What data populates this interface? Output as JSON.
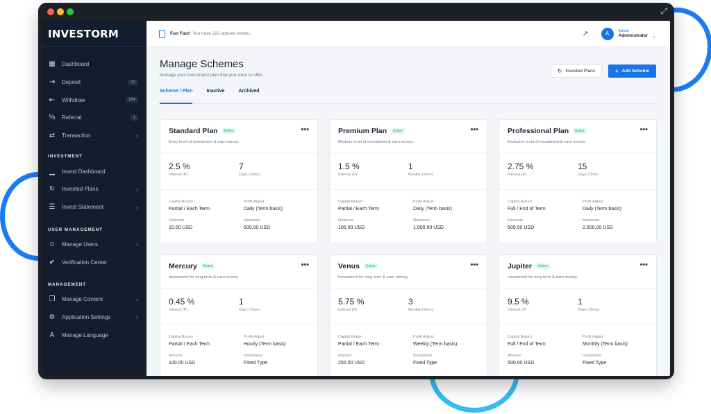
{
  "app": {
    "logo": "INVESTORM"
  },
  "sidebar": {
    "items": [
      {
        "label": "Dashboard",
        "icon": "grid-icon",
        "badge": "",
        "chevron": false
      },
      {
        "label": "Deposit",
        "icon": "deposit-icon",
        "badge": "21",
        "chevron": false
      },
      {
        "label": "Withdraw",
        "icon": "withdraw-icon",
        "badge": "164",
        "chevron": false
      },
      {
        "label": "Referral",
        "icon": "percent-icon",
        "badge": "1",
        "chevron": false
      },
      {
        "label": "Transaction",
        "icon": "transaction-icon",
        "badge": "",
        "chevron": true
      }
    ],
    "sections": [
      {
        "title": "INVESTMENT",
        "items": [
          {
            "label": "Invest Dashboard",
            "icon": "chart-icon",
            "chevron": false
          },
          {
            "label": "Invested Plans",
            "icon": "refresh-money-icon",
            "chevron": true
          },
          {
            "label": "Invest Statement",
            "icon": "statement-icon",
            "chevron": true
          }
        ]
      },
      {
        "title": "USER MANAGEMENT",
        "items": [
          {
            "label": "Manage Users",
            "icon": "users-icon",
            "chevron": true
          },
          {
            "label": "Verification Center",
            "icon": "check-circle-icon",
            "chevron": false
          }
        ]
      },
      {
        "title": "MANAGEMENT",
        "items": [
          {
            "label": "Manage Content",
            "icon": "content-icon",
            "chevron": true
          },
          {
            "label": "Application Settings",
            "icon": "gear-icon",
            "chevron": true
          },
          {
            "label": "Manage Language",
            "icon": "language-icon",
            "chevron": false
          }
        ]
      }
    ]
  },
  "topbar": {
    "fact_label": "Fun Fact!",
    "fact_text": "You have 222 actived invest...",
    "user_role": "Admin",
    "user_name": "Administrator",
    "avatar_letter": "A"
  },
  "page": {
    "title": "Manage Schemes",
    "subtitle": "Manage your investment plan that you want to offer.",
    "invested_plans_button": "Invested Plans",
    "add_scheme_button": "Add Scheme",
    "tabs": [
      "Scheme / Plan",
      "Inactive",
      "Archived"
    ]
  },
  "colors": {
    "accent": "#1b73e8",
    "sidebar_bg": "#131d2d",
    "active_green": "#1eb46b"
  },
  "plans": [
    {
      "name": "Standard Plan",
      "status": "Active",
      "desc": "Entry level of investment & earn money.",
      "rate": "2.5 %",
      "rate_label": "Interest (P)",
      "term": "7",
      "term_label": "Days (Term)",
      "d1_label": "Capital Return",
      "d1_value": "Partial / Each Term",
      "d2_label": "Profit Adjust",
      "d2_value": "Daily (Term basis)",
      "d3_label": "Minimum",
      "d3_value": "10.00 USD",
      "d4_label": "Maximum",
      "d4_value": "500.00 USD"
    },
    {
      "name": "Premium Plan",
      "status": "Active",
      "desc": "Medium level of investment & earn money.",
      "rate": "1.5 %",
      "rate_label": "Interest (P)",
      "term": "1",
      "term_label": "Months (Term)",
      "d1_label": "Capital Return",
      "d1_value": "Partial / Each Term",
      "d2_label": "Profit Adjust",
      "d2_value": "Daily (Term basis)",
      "d3_label": "Minimum",
      "d3_value": "100.00 USD",
      "d4_label": "Maximum",
      "d4_value": "1,500.00 USD"
    },
    {
      "name": "Professional Plan",
      "status": "Active",
      "desc": "Exclusive level of investment & earn money.",
      "rate": "2.75 %",
      "rate_label": "Interest (P)",
      "term": "15",
      "term_label": "Days (Term)",
      "d1_label": "Capital Return",
      "d1_value": "Full / End of Term",
      "d2_label": "Profit Adjust",
      "d2_value": "Daily (Term basis)",
      "d3_label": "Minimum",
      "d3_value": "500.00 USD",
      "d4_label": "Maximum",
      "d4_value": "2,500.00 USD"
    },
    {
      "name": "Mercury",
      "status": "Active",
      "desc": "Investment for long term & earn money.",
      "rate": "0.45 %",
      "rate_label": "Interest (P)",
      "term": "1",
      "term_label": "Days (Term)",
      "d1_label": "Capital Return",
      "d1_value": "Partial / Each Term",
      "d2_label": "Profit Adjust",
      "d2_value": "Hourly (Term basis)",
      "d3_label": "Amount",
      "d3_value": "100.00 USD",
      "d4_label": "Investment",
      "d4_value": "Fixed Type"
    },
    {
      "name": "Venus",
      "status": "Active",
      "desc": "Investment for long term & earn money.",
      "rate": "5.75 %",
      "rate_label": "Interest (P)",
      "term": "3",
      "term_label": "Months (Term)",
      "d1_label": "Capital Return",
      "d1_value": "Partial / Each Term",
      "d2_label": "Profit Adjust",
      "d2_value": "Weekly (Term basis)",
      "d3_label": "Amount",
      "d3_value": "250.00 USD",
      "d4_label": "Investment",
      "d4_value": "Fixed Type"
    },
    {
      "name": "Jupiter",
      "status": "Active",
      "desc": "Investment for long term & earn money.",
      "rate": "9.5 %",
      "rate_label": "Interest (P)",
      "term": "1",
      "term_label": "Years (Term)",
      "d1_label": "Capital Return",
      "d1_value": "Full / End of Term",
      "d2_label": "Profit Adjust",
      "d2_value": "Monthly (Term basis)",
      "d3_label": "Amount",
      "d3_value": "500.00 USD",
      "d4_label": "Investment",
      "d4_value": "Fixed Type"
    }
  ]
}
